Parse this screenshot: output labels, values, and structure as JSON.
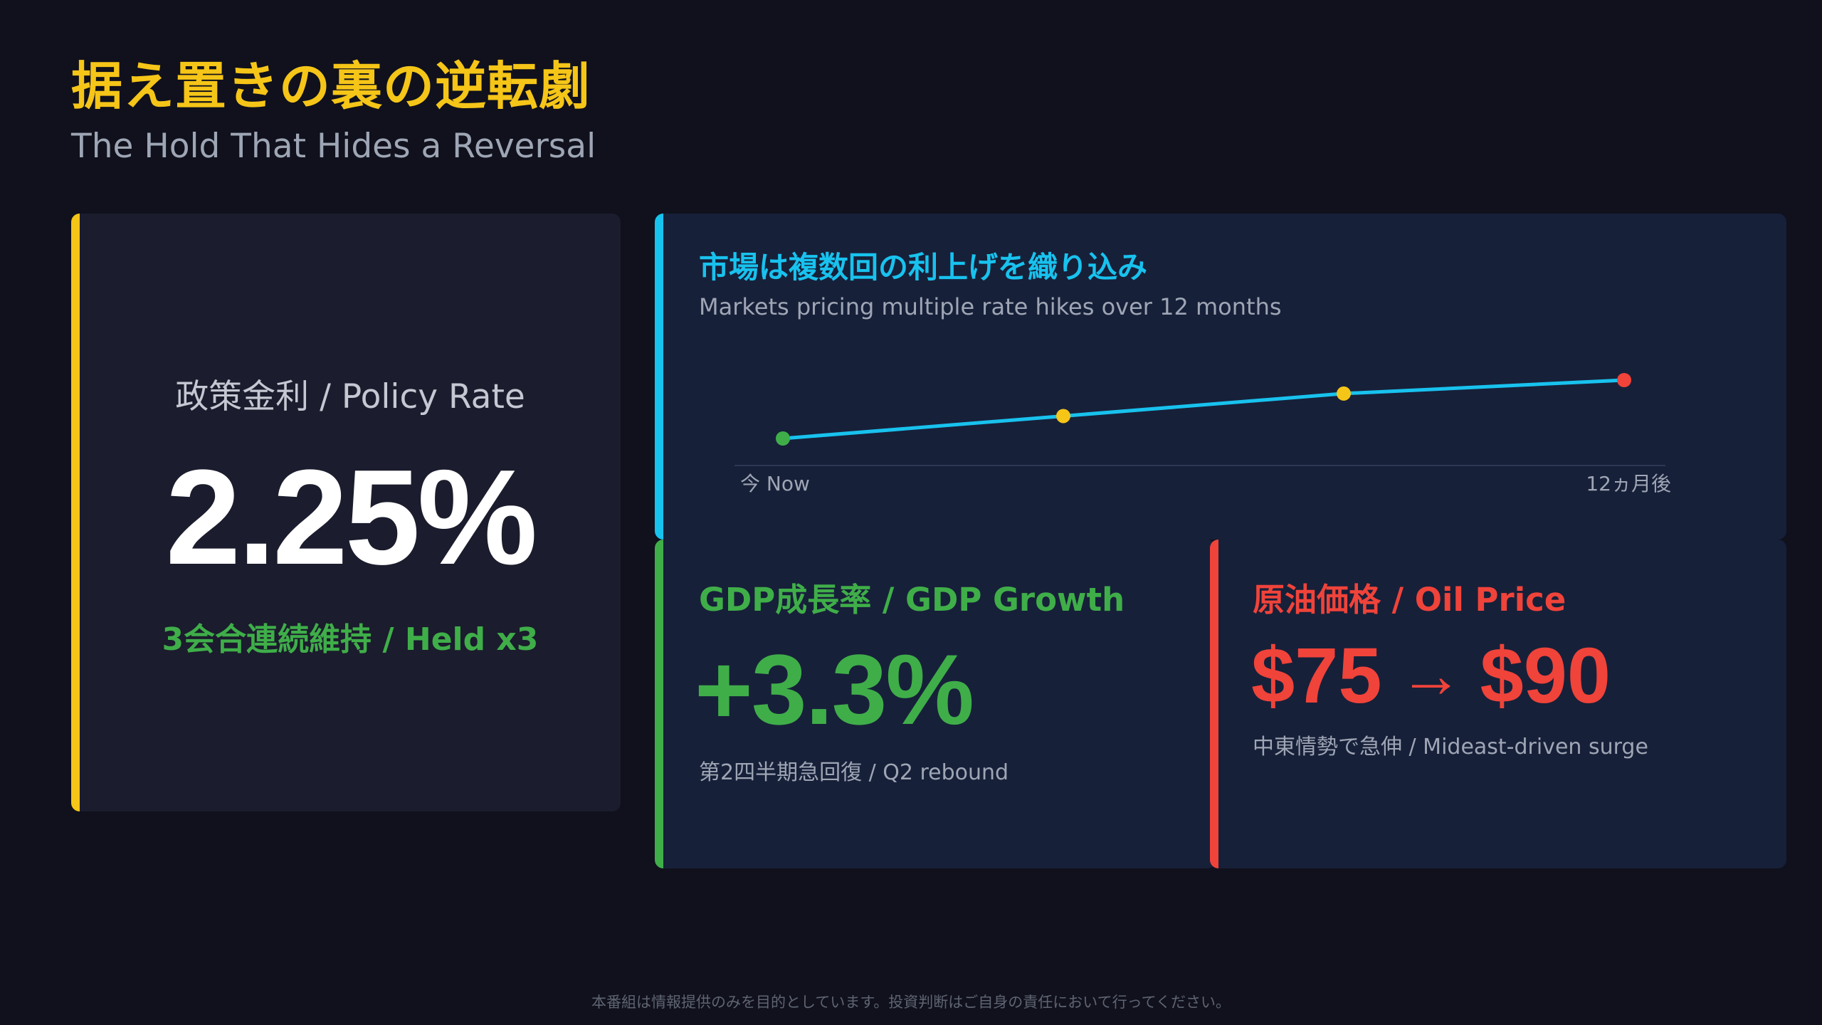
{
  "header": {
    "title": "据え置きの裏の逆転劇",
    "subtitle": "The Hold That Hides a Reversal"
  },
  "policy_rate": {
    "label": "政策金利 / Policy Rate",
    "value": "2.25%",
    "note": "3会合連続維持 / Held x3",
    "accent_color": "#f5c518"
  },
  "market": {
    "title": "市場は複数回の利上げを織り込み",
    "subtitle": "Markets pricing multiple rate hikes over 12 months",
    "x_start_label": "今 Now",
    "x_end_label": "12ヵ月後",
    "accent_color": "#18c2ee"
  },
  "chart_data": {
    "type": "line",
    "title": "市場は複数回の利上げを織り込み",
    "subtitle": "Markets pricing multiple rate hikes over 12 months",
    "x_labels": [
      "今 Now",
      "12ヵ月後"
    ],
    "x": [
      0,
      4,
      8,
      12
    ],
    "values": [
      0,
      1,
      2,
      2.6
    ],
    "point_colors": [
      "#3fae49",
      "#f5c518",
      "#f5c518",
      "#f0433a"
    ],
    "line_color": "#18c2ee",
    "ylim": [
      0,
      3
    ],
    "grid": false
  },
  "gdp": {
    "title": "GDP成長率 / GDP Growth",
    "value": "+3.3%",
    "note": "第2四半期急回復 / Q2 rebound",
    "accent_color": "#3fae49"
  },
  "oil": {
    "title": "原油価格 / Oil Price",
    "from": "$75",
    "arrow": "→",
    "to": "$90",
    "note": "中東情勢で急伸 / Mideast-driven surge",
    "accent_color": "#f0433a"
  },
  "footer": {
    "disclaimer": "本番組は情報提供のみを目的としています。投資判断はご自身の責任において行ってください。"
  }
}
